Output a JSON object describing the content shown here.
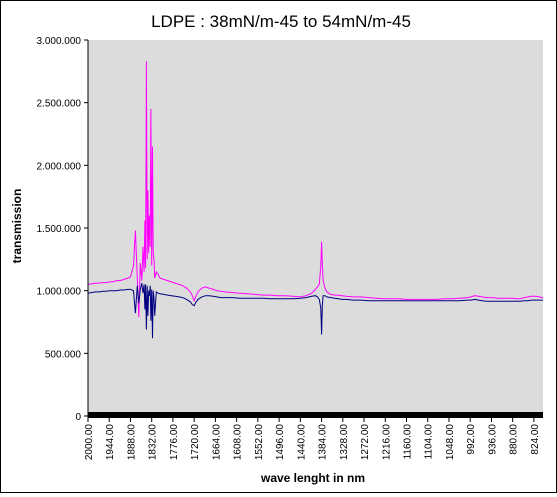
{
  "chart_data": {
    "type": "line",
    "title": "LDPE : 38mN/m-45 to 54mN/m-45",
    "xlabel": "wave lenght in nm",
    "ylabel": "transmission",
    "x_axis": {
      "reversed": true,
      "range": [
        2000,
        800
      ],
      "tick_labels": [
        "2000.00",
        "1944.00",
        "1888.00",
        "1832.00",
        "1776.00",
        "1720.00",
        "1664.00",
        "1608.00",
        "1552.00",
        "1496.00",
        "1440.00",
        "1384.00",
        "1328.00",
        "1272.00",
        "1216.00",
        "1160.00",
        "1104.00",
        "1048.00",
        "992.00",
        "936.00",
        "880.00",
        "824.00"
      ]
    },
    "y_axis": {
      "range": [
        0,
        3000000
      ],
      "ticks": [
        0,
        500000,
        1000000,
        1500000,
        2000000,
        2500000,
        3000000
      ],
      "tick_labels": [
        "0",
        "500.000",
        "1.000.000",
        "1.500.000",
        "2.000.000",
        "2.500.000",
        "3.000.000"
      ]
    },
    "grid": false,
    "legend": "none",
    "series": [
      {
        "color": "#ff00ff",
        "x": [
          2000,
          1990,
          1980,
          1970,
          1960,
          1950,
          1944,
          1935,
          1925,
          1915,
          1905,
          1895,
          1888,
          1880,
          1875,
          1870,
          1866,
          1862,
          1858,
          1855,
          1852,
          1850,
          1848,
          1846,
          1844,
          1842,
          1840,
          1838,
          1836,
          1834,
          1832,
          1830,
          1828,
          1826,
          1824,
          1820,
          1815,
          1810,
          1800,
          1790,
          1780,
          1770,
          1760,
          1750,
          1740,
          1730,
          1725,
          1720,
          1715,
          1710,
          1700,
          1690,
          1680,
          1670,
          1660,
          1650,
          1640,
          1620,
          1600,
          1580,
          1560,
          1540,
          1520,
          1500,
          1480,
          1460,
          1440,
          1425,
          1410,
          1400,
          1395,
          1390,
          1386,
          1384,
          1382,
          1380,
          1375,
          1370,
          1360,
          1350,
          1340,
          1330,
          1320,
          1300,
          1280,
          1260,
          1240,
          1220,
          1200,
          1180,
          1160,
          1140,
          1120,
          1100,
          1080,
          1060,
          1040,
          1020,
          1000,
          990,
          980,
          970,
          960,
          950,
          940,
          930,
          920,
          910,
          900,
          890,
          880,
          870,
          860,
          850,
          840,
          830,
          820,
          810,
          800
        ],
        "y": [
          1050000,
          1055000,
          1060000,
          1060000,
          1065000,
          1065000,
          1070000,
          1070000,
          1080000,
          1080000,
          1090000,
          1100000,
          1110000,
          1200000,
          1480000,
          1100000,
          790000,
          1220000,
          1080000,
          1350000,
          1150000,
          1560000,
          1180000,
          2830000,
          1250000,
          1800000,
          1300000,
          1600000,
          1350000,
          2450000,
          1200000,
          2150000,
          1300000,
          1250000,
          1100000,
          1150000,
          1130000,
          1100000,
          1090000,
          1080000,
          1070000,
          1060000,
          1050000,
          1040000,
          1020000,
          990000,
          960000,
          920000,
          960000,
          990000,
          1020000,
          1030000,
          1020000,
          1010000,
          1000000,
          995000,
          990000,
          985000,
          980000,
          975000,
          970000,
          965000,
          965000,
          960000,
          960000,
          955000,
          950000,
          960000,
          980000,
          1010000,
          1030000,
          1050000,
          1200000,
          1390000,
          1220000,
          1080000,
          1020000,
          990000,
          970000,
          965000,
          965000,
          960000,
          955000,
          950000,
          950000,
          945000,
          940000,
          935000,
          935000,
          935000,
          930000,
          930000,
          930000,
          930000,
          930000,
          935000,
          935000,
          940000,
          945000,
          950000,
          960000,
          955000,
          950000,
          945000,
          945000,
          945000,
          940000,
          940000,
          940000,
          940000,
          940000,
          935000,
          935000,
          945000,
          950000,
          955000,
          955000,
          950000,
          945000
        ]
      },
      {
        "color": "#000080",
        "x": [
          2000,
          1990,
          1980,
          1970,
          1960,
          1950,
          1944,
          1935,
          1925,
          1915,
          1905,
          1895,
          1888,
          1880,
          1875,
          1870,
          1866,
          1862,
          1858,
          1855,
          1852,
          1850,
          1848,
          1846,
          1844,
          1842,
          1840,
          1838,
          1836,
          1834,
          1832,
          1830,
          1828,
          1826,
          1824,
          1820,
          1815,
          1810,
          1800,
          1790,
          1780,
          1770,
          1760,
          1750,
          1740,
          1730,
          1725,
          1720,
          1715,
          1710,
          1700,
          1690,
          1680,
          1670,
          1660,
          1650,
          1640,
          1620,
          1600,
          1580,
          1560,
          1540,
          1520,
          1500,
          1480,
          1460,
          1440,
          1425,
          1410,
          1400,
          1395,
          1390,
          1386,
          1384,
          1382,
          1380,
          1375,
          1370,
          1360,
          1350,
          1340,
          1330,
          1320,
          1300,
          1280,
          1260,
          1240,
          1220,
          1200,
          1180,
          1160,
          1140,
          1120,
          1100,
          1080,
          1060,
          1040,
          1020,
          1000,
          990,
          980,
          970,
          960,
          950,
          940,
          930,
          920,
          910,
          900,
          890,
          880,
          870,
          860,
          850,
          840,
          830,
          820,
          810,
          800
        ],
        "y": [
          980000,
          985000,
          990000,
          990000,
          995000,
          995000,
          1000000,
          1000000,
          1000000,
          1005000,
          1005000,
          1010000,
          1010000,
          1000000,
          820000,
          1040000,
          900000,
          1010000,
          1060000,
          980000,
          1050000,
          850000,
          1050000,
          690000,
          1040000,
          800000,
          1000000,
          960000,
          1040000,
          760000,
          1010000,
          620000,
          1000000,
          940000,
          800000,
          990000,
          980000,
          975000,
          970000,
          965000,
          960000,
          955000,
          950000,
          945000,
          930000,
          910000,
          890000,
          880000,
          910000,
          930000,
          950000,
          960000,
          960000,
          955000,
          950000,
          945000,
          945000,
          945000,
          940000,
          940000,
          940000,
          940000,
          935000,
          935000,
          935000,
          935000,
          940000,
          945000,
          955000,
          960000,
          950000,
          930000,
          860000,
          650000,
          880000,
          960000,
          960000,
          950000,
          945000,
          940000,
          935000,
          930000,
          930000,
          925000,
          925000,
          920000,
          920000,
          920000,
          920000,
          920000,
          920000,
          920000,
          920000,
          920000,
          920000,
          920000,
          920000,
          920000,
          925000,
          925000,
          930000,
          925000,
          920000,
          915000,
          915000,
          915000,
          915000,
          915000,
          915000,
          915000,
          915000,
          915000,
          915000,
          920000,
          920000,
          925000,
          925000,
          925000,
          925000
        ]
      }
    ]
  },
  "colors": {
    "plot_background": "#dcdcdc",
    "axis": "#000000",
    "series_1": "#ff00ff",
    "series_2": "#000080"
  }
}
